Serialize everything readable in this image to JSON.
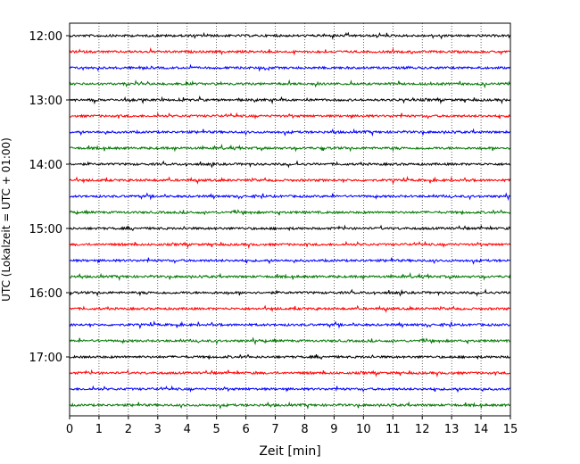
{
  "chart_data": {
    "type": "line",
    "title": "",
    "xlabel": "Zeit  [min]",
    "ylabel": "UTC (Lokalzeit = UTC + 01:00)",
    "xlim": [
      0,
      15
    ],
    "x_ticks": [
      "0",
      "1",
      "2",
      "3",
      "4",
      "5",
      "6",
      "7",
      "8",
      "9",
      "10",
      "11",
      "12",
      "13",
      "14",
      "15"
    ],
    "y_ticks": [
      "12:00",
      "13:00",
      "14:00",
      "15:00",
      "16:00",
      "17:00"
    ],
    "grid": "vertical dotted lines at each minute",
    "trace_interval_min": 15,
    "traces_per_hour": 4,
    "trace_count": 24,
    "trace_start_times": [
      "12:00",
      "12:15",
      "12:30",
      "12:45",
      "13:00",
      "13:15",
      "13:30",
      "13:45",
      "14:00",
      "14:15",
      "14:30",
      "14:45",
      "15:00",
      "15:15",
      "15:30",
      "15:45",
      "16:00",
      "16:15",
      "16:30",
      "16:45",
      "17:00",
      "17:15",
      "17:30",
      "17:45"
    ],
    "colors": [
      "#000000",
      "#ff0000",
      "#0000ff",
      "#007700"
    ]
  }
}
